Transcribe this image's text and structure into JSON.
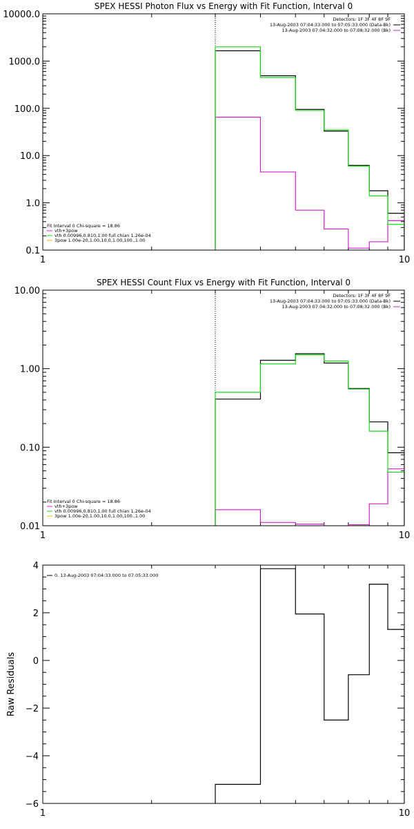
{
  "chart_data": [
    {
      "type": "line",
      "step": true,
      "title": "SPEX HESSI Photon Flux vs Energy with Fit Function, Interval 0",
      "xscale": "log",
      "yscale": "log",
      "xlim": [
        1,
        10
      ],
      "ylim": [
        0.1,
        10000
      ],
      "xticks": [
        "1",
        "10"
      ],
      "yticks": [
        "0.1",
        "1.0",
        "10.0",
        "100.0",
        "1000.0",
        "10000.0"
      ],
      "grid": false,
      "vline_x": 3,
      "info_lines": [
        "Detectors: 1F 3F 4F 8F 9F",
        "13-Aug-2003 07:04:33.000 to 07:05:33.000 (Data-Bk)",
        "13-Aug-2003 07:04:32.000 to 07:08:32.000 (Bk)"
      ],
      "legend_header": "Fit Interval 0   Chi-square = 18.86",
      "legend_entries": [
        {
          "label": "vth+3pow",
          "color": "#e91ee9"
        },
        {
          "label": "vth 0.00996,0.810,1.00   full chian 1.26e-04",
          "color": "#1cd81c"
        },
        {
          "label": "3pow 1.00e-20,1.00,10.0,1.00,100.,1.00",
          "color": "#e8c000"
        }
      ],
      "edges": [
        3.0,
        4.0,
        5.0,
        6.0,
        7.0,
        8.0,
        9.0,
        10.0
      ],
      "series": [
        {
          "name": "Data-Bk",
          "color": "#000000",
          "values": [
            1650,
            490,
            95,
            33,
            6.2,
            1.8,
            0.6
          ]
        },
        {
          "name": "Bk",
          "color": "#cc22cc",
          "values": [
            65,
            4.5,
            0.7,
            0.28,
            0.11,
            0.15,
            0.42
          ]
        },
        {
          "name": "vth+3pow",
          "color": "#1cd81c",
          "values": [
            2000,
            450,
            90,
            35,
            6.0,
            1.4,
            0.35
          ]
        }
      ]
    },
    {
      "type": "line",
      "step": true,
      "title": "SPEX HESSI Count Flux vs Energy with Fit Function, Interval 0",
      "xscale": "log",
      "yscale": "log",
      "xlim": [
        1,
        10
      ],
      "ylim": [
        0.01,
        10
      ],
      "xticks": [
        "1",
        "10"
      ],
      "yticks": [
        "0.01",
        "0.10",
        "1.00",
        "10.00"
      ],
      "grid": false,
      "vline_x": 3,
      "info_lines": [
        "Detectors: 1F 3F 4F 8F 9F",
        "13-Aug-2003 07:04:33.000 to 07:05:33.000 (Data-Bk)",
        "13-Aug-2003 07:04:32.000 to 07:08:32.000 (Bk)"
      ],
      "legend_header": "Fit Interval 0   Chi-square = 18.86",
      "legend_entries": [
        {
          "label": "vth+3pow",
          "color": "#e91ee9"
        },
        {
          "label": "vth 0.00996,0.810,1.00   full chian 1.26e-04",
          "color": "#1cd81c"
        },
        {
          "label": "3pow 1.00e-20,1.00,10.0,1.00,100.,1.00",
          "color": "#e8c000"
        }
      ],
      "edges": [
        3.0,
        4.0,
        5.0,
        6.0,
        7.0,
        8.0,
        9.0,
        10.0
      ],
      "series": [
        {
          "name": "Data-Bk",
          "color": "#000000",
          "values": [
            0.41,
            1.28,
            1.55,
            1.18,
            0.56,
            0.21,
            0.085
          ]
        },
        {
          "name": "Bk",
          "color": "#cc22cc",
          "values": [
            0.016,
            0.011,
            0.0105,
            0.0098,
            0.0103,
            0.019,
            0.053
          ]
        },
        {
          "name": "vth+3pow",
          "color": "#1cd81c",
          "values": [
            0.5,
            1.15,
            1.5,
            1.25,
            0.55,
            0.16,
            0.048
          ]
        }
      ]
    },
    {
      "type": "line",
      "step": true,
      "title": "",
      "ylabel": "Raw Residuals",
      "xscale": "log",
      "yscale": "linear",
      "xlim": [
        1,
        10
      ],
      "ylim": [
        -6,
        4
      ],
      "xticks": [
        "1",
        "10"
      ],
      "yticks": [
        "−6",
        "−4",
        "−2",
        "0",
        "2",
        "4"
      ],
      "grid": false,
      "legend_entries": [
        {
          "label": "0. 13-Aug-2003 07:04:33.000 to 07:05:33.000",
          "color": "#000000"
        }
      ],
      "edges": [
        3.0,
        4.0,
        5.0,
        6.0,
        7.0,
        8.0,
        9.0,
        10.0
      ],
      "series": [
        {
          "name": "",
          "color": "#000000",
          "values": [
            -5.2,
            3.85,
            1.95,
            -2.5,
            -0.6,
            3.2,
            1.3
          ]
        }
      ]
    }
  ]
}
